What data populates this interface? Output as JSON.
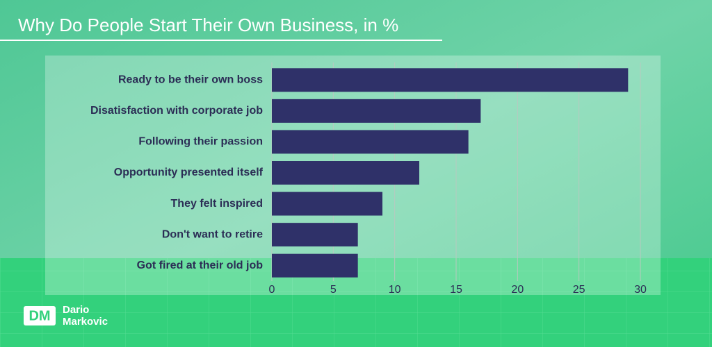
{
  "chart_data": {
    "type": "bar",
    "orientation": "horizontal",
    "title": "Why Do People Start Their Own Business, in %",
    "categories": [
      "Ready to be their own boss",
      "Disatisfaction with corporate job",
      "Following their passion",
      "Opportunity presented itself",
      "They felt inspired",
      "Don't want to retire",
      "Got fired at their old job"
    ],
    "values": [
      29,
      17,
      16,
      12,
      9,
      7,
      7
    ],
    "color": "#2f3169",
    "xlim": [
      0,
      30
    ],
    "xticks": [
      0,
      5,
      10,
      15,
      20,
      25,
      30
    ],
    "grid": true
  },
  "brand": {
    "logo": "DM",
    "name_first": "Dario",
    "name_last": "Markovic"
  }
}
